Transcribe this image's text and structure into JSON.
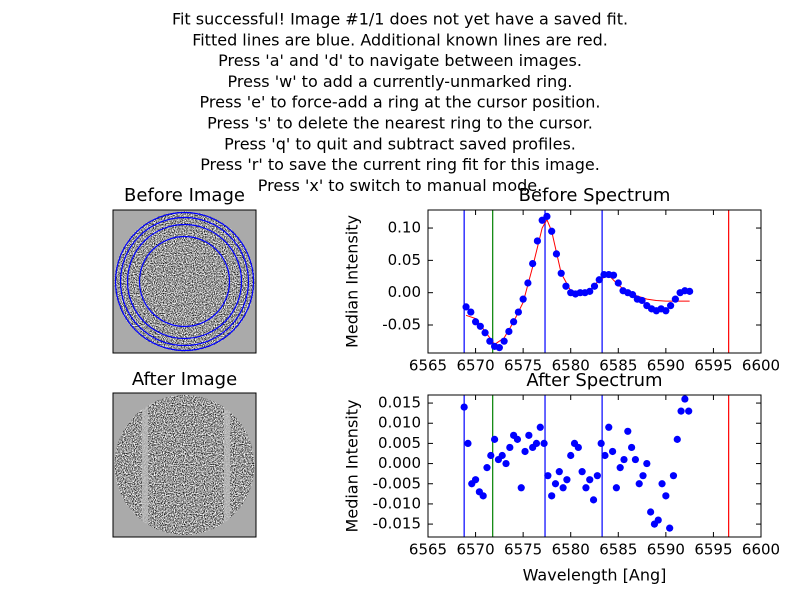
{
  "instructions": [
    "Fit successful! Image #1/1 does not yet have a saved fit.",
    "Fitted lines are blue. Additional known lines are red.",
    "Press 'a' and 'd' to navigate between images.",
    "Press 'w' to add a currently-unmarked ring.",
    "Press 'e' to force-add a ring at the cursor position.",
    "Press 's' to delete the nearest ring to the cursor.",
    "Press 'q' to quit and subtract saved profiles.",
    "Press 'r' to save the current ring fit for this image.",
    "Press 'x' to switch to manual mode."
  ],
  "images": [
    {
      "title": "Before Image"
    },
    {
      "title": "After Image"
    }
  ],
  "chart_data": [
    {
      "type": "scatter",
      "title": "Before Spectrum",
      "ylabel": "Median Intensity",
      "xlim": [
        6565,
        6600
      ],
      "xticks": [
        6565,
        6570,
        6575,
        6580,
        6585,
        6590,
        6595,
        6600
      ],
      "ylim": [
        -0.0933,
        0.1279
      ],
      "yticks": [
        {
          "value": -0.05,
          "label": "-0.05"
        },
        {
          "value": 0,
          "label": "0.00"
        },
        {
          "value": 0.05,
          "label": "0.05"
        },
        {
          "value": 0.1,
          "label": "0.10"
        }
      ],
      "lines": [
        {
          "x": 6568.8,
          "color": "#0000ff"
        },
        {
          "x": 6571.8,
          "color": "#008000"
        },
        {
          "x": 6577.3,
          "color": "#0000ff"
        },
        {
          "x": 6583.3,
          "color": "#0000ff"
        },
        {
          "x": 6596.6,
          "color": "#ff0000"
        }
      ],
      "points": {
        "color": "#0000ff",
        "x": [
          6569.0,
          6569.5,
          6570.0,
          6570.5,
          6571.0,
          6571.5,
          6572.0,
          6572.5,
          6573.0,
          6573.5,
          6574.0,
          6574.5,
          6575.0,
          6575.5,
          6576.0,
          6576.5,
          6577.0,
          6577.5,
          6578.0,
          6578.5,
          6579.0,
          6579.5,
          6580.0,
          6580.5,
          6581.0,
          6581.5,
          6582.0,
          6582.5,
          6583.0,
          6583.5,
          6584.0,
          6584.5,
          6585.0,
          6585.5,
          6586.0,
          6586.5,
          6587.0,
          6587.5,
          6588.0,
          6588.5,
          6589.0,
          6589.5,
          6590.0,
          6590.5,
          6591.0,
          6591.5,
          6592.0,
          6592.5
        ],
        "values": [
          -0.022,
          -0.03,
          -0.045,
          -0.052,
          -0.062,
          -0.075,
          -0.083,
          -0.085,
          -0.075,
          -0.06,
          -0.045,
          -0.03,
          -0.01,
          0.015,
          0.045,
          0.08,
          0.112,
          0.118,
          0.095,
          0.06,
          0.03,
          0.01,
          0.0,
          -0.002,
          0.0,
          0.0,
          0.002,
          0.01,
          0.02,
          0.028,
          0.028,
          0.027,
          0.015,
          0.003,
          0.0,
          -0.003,
          -0.01,
          -0.012,
          -0.02,
          -0.025,
          -0.028,
          -0.025,
          -0.028,
          -0.02,
          -0.01,
          0.0,
          0.003,
          0.002
        ]
      },
      "fit": {
        "color": "#ff0000",
        "x": [
          6569,
          6570,
          6571,
          6572,
          6573,
          6574,
          6575,
          6576,
          6577,
          6577.5,
          6578,
          6579,
          6580,
          6581,
          6582,
          6583,
          6584,
          6585,
          6586,
          6587,
          6588,
          6589,
          6590,
          6591,
          6592.5
        ],
        "values": [
          -0.035,
          -0.04,
          -0.06,
          -0.08,
          -0.07,
          -0.045,
          -0.015,
          0.04,
          0.1,
          0.113,
          0.095,
          0.03,
          0.003,
          0,
          0.003,
          0.02,
          0.027,
          0.012,
          0.0,
          -0.005,
          -0.01,
          -0.012,
          -0.013,
          -0.013,
          -0.013
        ]
      }
    },
    {
      "type": "scatter",
      "title": "After Spectrum",
      "ylabel": "Median Intensity",
      "xlabel": "Wavelength [Ang]",
      "xlim": [
        6565,
        6600
      ],
      "xticks": [
        6565,
        6570,
        6575,
        6580,
        6585,
        6590,
        6595,
        6600
      ],
      "ylim": [
        -0.0182,
        0.017
      ],
      "yticks": [
        {
          "value": -0.015,
          "label": "-0.015"
        },
        {
          "value": -0.01,
          "label": "-0.010"
        },
        {
          "value": -0.005,
          "label": "-0.005"
        },
        {
          "value": 0,
          "label": "0.000"
        },
        {
          "value": 0.005,
          "label": "0.005"
        },
        {
          "value": 0.01,
          "label": "0.010"
        },
        {
          "value": 0.015,
          "label": "0.015"
        }
      ],
      "lines": [
        {
          "x": 6568.8,
          "color": "#0000ff"
        },
        {
          "x": 6571.8,
          "color": "#008000"
        },
        {
          "x": 6577.3,
          "color": "#0000ff"
        },
        {
          "x": 6583.3,
          "color": "#0000ff"
        },
        {
          "x": 6596.6,
          "color": "#ff0000"
        }
      ],
      "points": {
        "color": "#0000ff",
        "x": [
          6568.8,
          6569.2,
          6569.6,
          6570.0,
          6570.4,
          6570.8,
          6571.2,
          6571.6,
          6572.0,
          6572.4,
          6572.8,
          6573.2,
          6573.6,
          6574.0,
          6574.4,
          6574.8,
          6575.2,
          6575.6,
          6576.0,
          6576.4,
          6576.8,
          6577.2,
          6577.6,
          6578.0,
          6578.4,
          6578.8,
          6579.2,
          6579.6,
          6580.0,
          6580.4,
          6580.8,
          6581.2,
          6581.6,
          6582.0,
          6582.4,
          6582.8,
          6583.2,
          6583.6,
          6584.0,
          6584.4,
          6584.8,
          6585.2,
          6585.6,
          6586.0,
          6586.4,
          6586.8,
          6587.2,
          6587.6,
          6588.0,
          6588.4,
          6588.8,
          6589.2,
          6589.6,
          6590.0,
          6590.4,
          6590.8,
          6591.2,
          6591.6,
          6592.0,
          6592.4
        ],
        "values": [
          0.014,
          0.005,
          -0.005,
          -0.004,
          -0.007,
          -0.008,
          -0.001,
          0.002,
          0.006,
          0.001,
          0.002,
          0.0,
          0.004,
          0.007,
          0.006,
          -0.006,
          0.003,
          0.007,
          0.004,
          0.005,
          0.009,
          0.005,
          -0.003,
          -0.008,
          -0.005,
          -0.002,
          -0.006,
          -0.004,
          0.002,
          0.005,
          0.004,
          -0.002,
          -0.006,
          -0.004,
          -0.009,
          -0.003,
          0.005,
          0.002,
          0.009,
          0.003,
          -0.006,
          -0.001,
          0.001,
          0.008,
          0.004,
          0.001,
          -0.005,
          -0.003,
          0.0,
          -0.012,
          -0.015,
          -0.014,
          -0.005,
          -0.008,
          -0.016,
          -0.003,
          0.006,
          0.013,
          0.016,
          0.013
        ]
      }
    }
  ]
}
